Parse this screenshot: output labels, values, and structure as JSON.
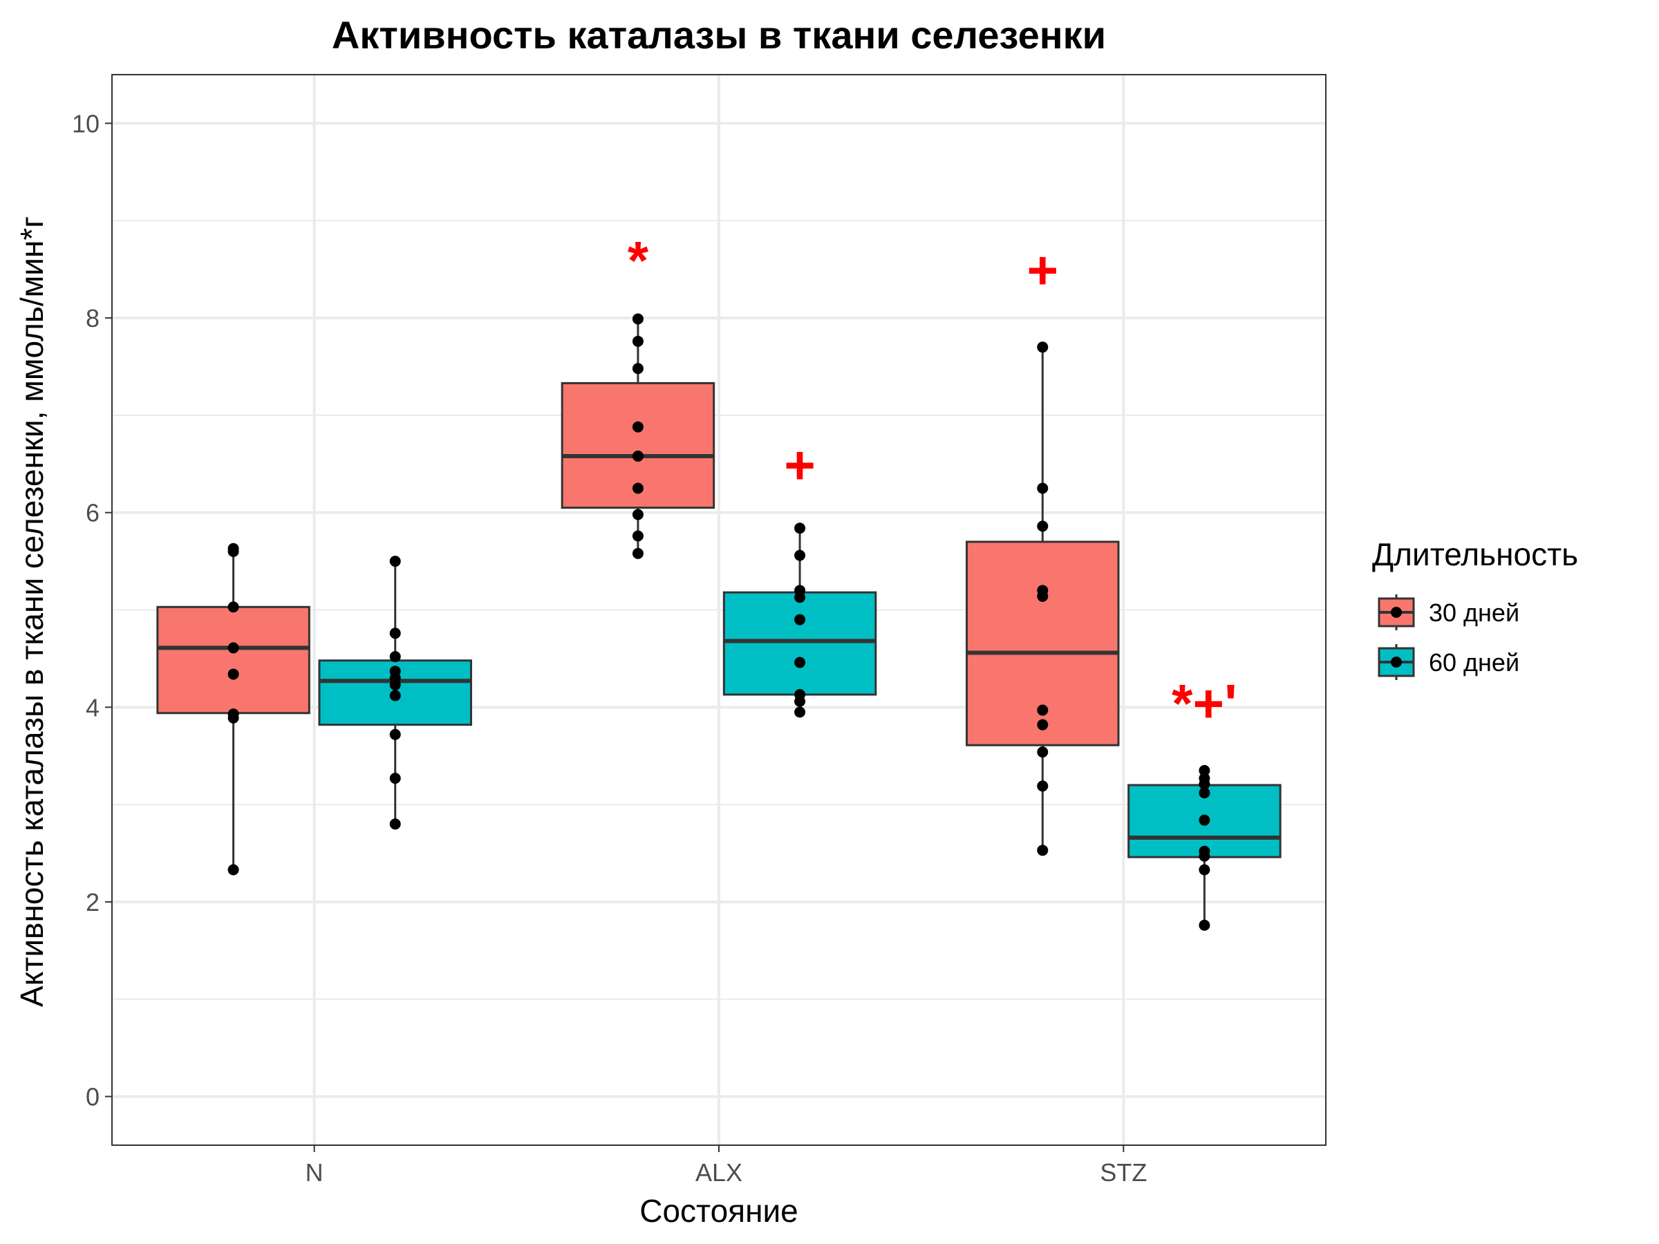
{
  "chart_data": {
    "type": "box",
    "title": "Активность каталазы в ткани селезенки",
    "xlabel": "Состояние",
    "ylabel": "Активность каталазы в ткани селезенки, ммоль/мин*г",
    "ylim": [
      -0.5,
      10.5
    ],
    "yticks": [
      0,
      2,
      4,
      6,
      8,
      10
    ],
    "ytick_labels": [
      "0",
      "2",
      "4",
      "6",
      "8",
      "10"
    ],
    "grid": true,
    "categories": [
      "N",
      "ALX",
      "STZ"
    ],
    "legend": {
      "title": "Длительность",
      "position": "right"
    },
    "series": [
      {
        "name": "30 дней",
        "color": "#F8766D",
        "boxes": [
          {
            "category": "N",
            "whisker_low": 2.33,
            "q1": 3.94,
            "median": 4.61,
            "q3": 5.03,
            "whisker_high": 5.63
          },
          {
            "category": "ALX",
            "whisker_low": 5.58,
            "q1": 6.05,
            "median": 6.58,
            "q3": 7.33,
            "whisker_high": 7.99
          },
          {
            "category": "STZ",
            "whisker_low": 2.53,
            "q1": 3.61,
            "median": 4.56,
            "q3": 5.7,
            "whisker_high": 7.7
          }
        ],
        "points": [
          {
            "category": "N",
            "values": [
              5.63,
              5.6,
              5.03,
              4.61,
              4.34,
              3.93,
              3.89,
              2.33
            ]
          },
          {
            "category": "ALX",
            "values": [
              7.99,
              7.76,
              7.48,
              6.88,
              6.58,
              6.58,
              6.25,
              5.98,
              5.76,
              5.58
            ]
          },
          {
            "category": "STZ",
            "values": [
              7.7,
              6.25,
              5.86,
              5.2,
              5.14,
              3.97,
              3.82,
              3.54,
              3.19,
              2.53
            ]
          }
        ]
      },
      {
        "name": "60 дней",
        "color": "#00BFC4",
        "boxes": [
          {
            "category": "N",
            "whisker_low": 2.8,
            "q1": 3.82,
            "median": 4.27,
            "q3": 4.48,
            "whisker_high": 5.5
          },
          {
            "category": "ALX",
            "whisker_low": 3.95,
            "q1": 4.13,
            "median": 4.68,
            "q3": 5.18,
            "whisker_high": 5.84
          },
          {
            "category": "STZ",
            "whisker_low": 1.76,
            "q1": 2.46,
            "median": 2.66,
            "q3": 3.2,
            "whisker_high": 3.35
          }
        ],
        "points": [
          {
            "category": "N",
            "values": [
              5.5,
              4.76,
              4.52,
              4.37,
              4.3,
              4.23,
              4.12,
              3.72,
              3.27,
              2.8
            ]
          },
          {
            "category": "ALX",
            "values": [
              5.84,
              5.56,
              5.2,
              5.13,
              4.9,
              4.46,
              4.13,
              4.06,
              3.95
            ]
          },
          {
            "category": "STZ",
            "values": [
              3.35,
              3.27,
              3.21,
              3.12,
              2.84,
              2.52,
              2.47,
              2.33,
              1.76
            ]
          }
        ]
      }
    ],
    "annotations": [
      {
        "text": "*",
        "category": "ALX",
        "series": "30 дней",
        "y": 8.6
      },
      {
        "text": "+",
        "category": "ALX",
        "series": "60 дней",
        "y": 6.5
      },
      {
        "text": "+",
        "category": "STZ",
        "series": "30 дней",
        "y": 8.5
      },
      {
        "text": "*+'",
        "category": "STZ",
        "series": "60 дней",
        "y": 4.05
      }
    ]
  }
}
